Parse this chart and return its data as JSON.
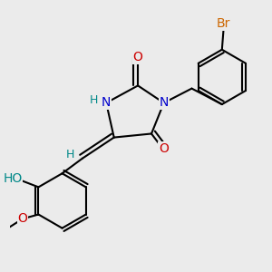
{
  "bg_color": "#ebebeb",
  "atom_colors": {
    "C": "#000000",
    "N": "#0000cc",
    "O": "#cc0000",
    "H": "#008888",
    "Br": "#cc6600"
  },
  "bond_color": "#000000",
  "bond_width": 1.5,
  "font_size_atom": 10,
  "font_size_H": 9,
  "font_size_Br": 10
}
